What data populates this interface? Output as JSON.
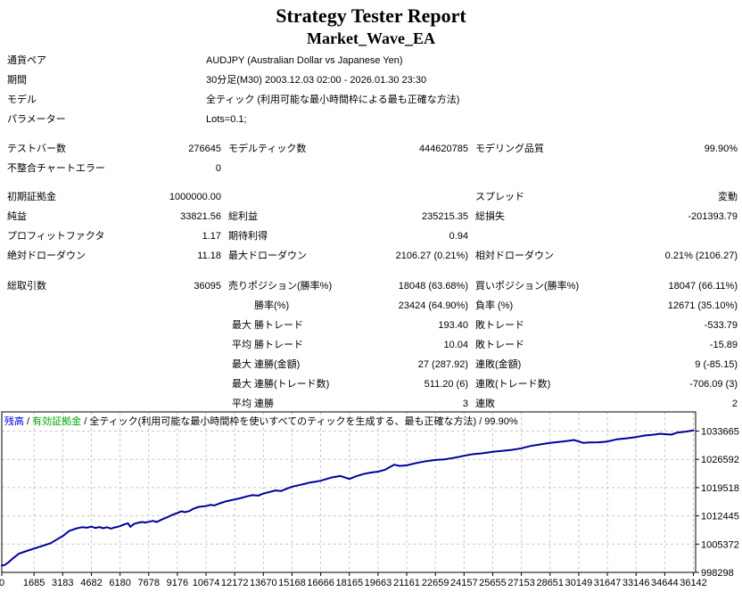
{
  "title": "Strategy Tester Report",
  "subtitle": "Market_Wave_EA",
  "info": {
    "symbol": {
      "label": "通貨ペア",
      "value": "AUDJPY (Australian Dollar vs Japanese Yen)"
    },
    "period": {
      "label": "期間",
      "value": "30分足(M30) 2003.12.03 02:00 - 2026.01.30 23:30"
    },
    "model": {
      "label": "モデル",
      "value": "全ティック (利用可能な最小時間枠による最も正確な方法)"
    },
    "parameters": {
      "label": "パラメーター",
      "value": "Lots=0.1;"
    }
  },
  "stats": {
    "bars": {
      "label": "テストバー数",
      "value": "276645"
    },
    "ticks": {
      "label": "モデルティック数",
      "value": "444620785"
    },
    "quality": {
      "label": "モデリング品質",
      "value": "99.90%"
    },
    "mismatched": {
      "label": "不整合チャートエラー",
      "value": "0"
    },
    "deposit": {
      "label": "初期証拠金",
      "value": "1000000.00"
    },
    "spread": {
      "label": "スプレッド",
      "value": "変動"
    },
    "net_profit": {
      "label": "純益",
      "value": "33821.56"
    },
    "gross_profit": {
      "label": "総利益",
      "value": "235215.35"
    },
    "gross_loss": {
      "label": "総損失",
      "value": "-201393.79"
    },
    "profit_factor": {
      "label": "プロフィットファクタ",
      "value": "1.17"
    },
    "expected_payoff": {
      "label": "期待利得",
      "value": "0.94"
    },
    "abs_dd": {
      "label": "絶対ドローダウン",
      "value": "11.18"
    },
    "max_dd": {
      "label": "最大ドローダウン",
      "value": "2106.27 (0.21%)"
    },
    "rel_dd": {
      "label": "相対ドローダウン",
      "value": "0.21% (2106.27)"
    },
    "total_trades": {
      "label": "総取引数",
      "value": "36095"
    },
    "short_pos": {
      "label": "売りポジション(勝率%)",
      "value": "18048 (63.68%)"
    },
    "long_pos": {
      "label": "買いポジション(勝率%)",
      "value": "18047 (66.11%)"
    },
    "profit_trades": {
      "label": "勝率(%)",
      "value": "23424 (64.90%)"
    },
    "loss_trades": {
      "label": "負率 (%)",
      "value": "12671 (35.10%)"
    },
    "largest": {
      "label": "最大"
    },
    "average": {
      "label": "平均"
    },
    "largest_profit": {
      "label": "勝トレード",
      "value": "193.40"
    },
    "largest_loss": {
      "label": "敗トレード",
      "value": "-533.79"
    },
    "avg_profit": {
      "label": "勝トレード",
      "value": "10.04"
    },
    "avg_loss": {
      "label": "敗トレード",
      "value": "-15.89"
    },
    "max_cons_wins": {
      "label": "連勝(金額)",
      "value": "27 (287.92)"
    },
    "max_cons_losses": {
      "label": "連敗(金額)",
      "value": "9 (-85.15)"
    },
    "max_cons_profit": {
      "label": "連勝(トレード数)",
      "value": "511.20 (6)"
    },
    "max_cons_loss": {
      "label": "連敗(トレード数)",
      "value": "-706.09 (3)"
    },
    "avg_cons_wins": {
      "label": "連勝",
      "value": "3"
    },
    "avg_cons_losses": {
      "label": "連敗",
      "value": "2"
    }
  },
  "chart_data": {
    "type": "line",
    "legend": {
      "balance_label": "残高",
      "separator1": " / ",
      "equity_label": "有効証拠金",
      "rest": " / 全ティック(利用可能な最小時間枠を使いすべてのティックを生成する、最も正確な方法) / 99.90%"
    },
    "colors": {
      "balance_text": "#0000ff",
      "equity_text": "#00a900",
      "line": "#00009b",
      "grid": "#c8c8c8",
      "border": "#000000"
    },
    "x_max": 36142,
    "y_axis": {
      "min": 998298,
      "max": 1033665
    },
    "x_ticks": [
      0,
      1685,
      3183,
      4682,
      6180,
      7678,
      9176,
      10674,
      12172,
      13670,
      15168,
      16666,
      18165,
      19663,
      21161,
      22659,
      24157,
      25655,
      27153,
      28651,
      30149,
      31647,
      33146,
      34644,
      36142
    ],
    "y_ticks": [
      1033665,
      1026592,
      1019518,
      1012445,
      1005372,
      998298
    ],
    "series": [
      {
        "name": "残高",
        "points": [
          [
            0,
            1000000
          ],
          [
            150,
            1000150
          ],
          [
            350,
            1000800
          ],
          [
            600,
            1001900
          ],
          [
            900,
            1003000
          ],
          [
            1300,
            1003650
          ],
          [
            1685,
            1004260
          ],
          [
            2100,
            1004900
          ],
          [
            2550,
            1005600
          ],
          [
            2900,
            1006600
          ],
          [
            3183,
            1007380
          ],
          [
            3530,
            1008700
          ],
          [
            3900,
            1009300
          ],
          [
            4200,
            1009600
          ],
          [
            4450,
            1009480
          ],
          [
            4682,
            1009750
          ],
          [
            4900,
            1009400
          ],
          [
            5100,
            1009650
          ],
          [
            5300,
            1009350
          ],
          [
            5500,
            1009600
          ],
          [
            5700,
            1009250
          ],
          [
            5900,
            1009550
          ],
          [
            6180,
            1009850
          ],
          [
            6400,
            1010300
          ],
          [
            6600,
            1010600
          ],
          [
            6720,
            1009700
          ],
          [
            6900,
            1010400
          ],
          [
            7100,
            1010700
          ],
          [
            7350,
            1010900
          ],
          [
            7500,
            1010780
          ],
          [
            7678,
            1010950
          ],
          [
            7900,
            1011200
          ],
          [
            8100,
            1010900
          ],
          [
            8350,
            1011500
          ],
          [
            8600,
            1012000
          ],
          [
            8850,
            1012550
          ],
          [
            9176,
            1013190
          ],
          [
            9400,
            1013600
          ],
          [
            9560,
            1013350
          ],
          [
            9800,
            1013650
          ],
          [
            10000,
            1014200
          ],
          [
            10300,
            1014700
          ],
          [
            10674,
            1014900
          ],
          [
            10900,
            1015200
          ],
          [
            11100,
            1015050
          ],
          [
            11400,
            1015600
          ],
          [
            11700,
            1016050
          ],
          [
            12172,
            1016540
          ],
          [
            12500,
            1016900
          ],
          [
            12800,
            1017300
          ],
          [
            13100,
            1017620
          ],
          [
            13400,
            1017520
          ],
          [
            13670,
            1018030
          ],
          [
            14000,
            1018420
          ],
          [
            14300,
            1018800
          ],
          [
            14600,
            1018680
          ],
          [
            14900,
            1019250
          ],
          [
            15168,
            1019740
          ],
          [
            15500,
            1020100
          ],
          [
            15800,
            1020420
          ],
          [
            16100,
            1020800
          ],
          [
            16400,
            1021020
          ],
          [
            16666,
            1021230
          ],
          [
            17000,
            1021700
          ],
          [
            17300,
            1022120
          ],
          [
            17700,
            1022430
          ],
          [
            18165,
            1021680
          ],
          [
            18500,
            1022320
          ],
          [
            18900,
            1022900
          ],
          [
            19300,
            1023300
          ],
          [
            19663,
            1023520
          ],
          [
            20040,
            1024000
          ],
          [
            20500,
            1025250
          ],
          [
            20800,
            1024950
          ],
          [
            21161,
            1025100
          ],
          [
            21700,
            1025700
          ],
          [
            22200,
            1026150
          ],
          [
            22659,
            1026440
          ],
          [
            23150,
            1026600
          ],
          [
            23640,
            1026970
          ],
          [
            24157,
            1027490
          ],
          [
            24590,
            1027860
          ],
          [
            25080,
            1028080
          ],
          [
            25655,
            1028460
          ],
          [
            26120,
            1028680
          ],
          [
            26690,
            1028980
          ],
          [
            27153,
            1029350
          ],
          [
            27640,
            1029940
          ],
          [
            28130,
            1030320
          ],
          [
            28651,
            1030690
          ],
          [
            29090,
            1030910
          ],
          [
            29580,
            1031210
          ],
          [
            29900,
            1031430
          ],
          [
            30400,
            1030700
          ],
          [
            30700,
            1030840
          ],
          [
            31180,
            1030860
          ],
          [
            31647,
            1031060
          ],
          [
            32130,
            1031580
          ],
          [
            32610,
            1031810
          ],
          [
            33146,
            1032180
          ],
          [
            33590,
            1032550
          ],
          [
            34080,
            1032770
          ],
          [
            34400,
            1033000
          ],
          [
            34980,
            1032770
          ],
          [
            35300,
            1033290
          ],
          [
            35700,
            1033500
          ],
          [
            36142,
            1033822
          ]
        ]
      }
    ]
  }
}
